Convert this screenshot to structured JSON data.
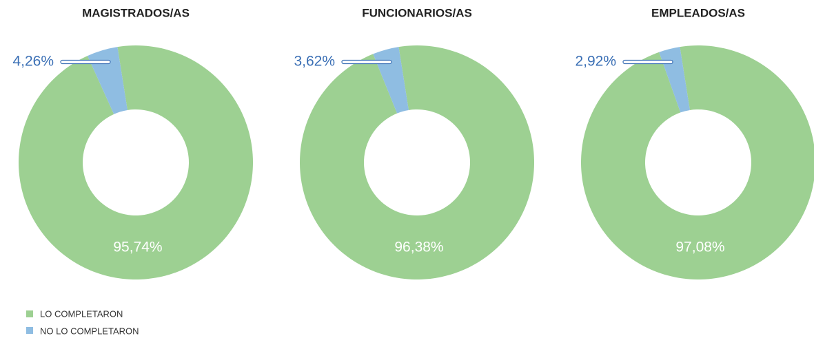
{
  "chart_data": [
    {
      "type": "pie",
      "title": "MAGISTRADOS/AS",
      "categories": [
        "LO COMPLETARON",
        "NO LO COMPLETARON"
      ],
      "values": [
        95.74,
        4.26
      ],
      "value_labels": [
        "95,74%",
        "4,26%"
      ],
      "colors": [
        "#9dd092",
        "#8fbde2"
      ]
    },
    {
      "type": "pie",
      "title": "FUNCIONARIOS/AS",
      "categories": [
        "LO COMPLETARON",
        "NO LO COMPLETARON"
      ],
      "values": [
        96.38,
        3.62
      ],
      "value_labels": [
        "96,38%",
        "3,62%"
      ],
      "colors": [
        "#9dd092",
        "#8fbde2"
      ]
    },
    {
      "type": "pie",
      "title": "EMPLEADOS/AS",
      "categories": [
        "LO COMPLETARON",
        "NO LO COMPLETARON"
      ],
      "values": [
        97.08,
        2.92
      ],
      "value_labels": [
        "97,08%",
        "2,92%"
      ],
      "colors": [
        "#9dd092",
        "#8fbde2"
      ]
    }
  ]
}
